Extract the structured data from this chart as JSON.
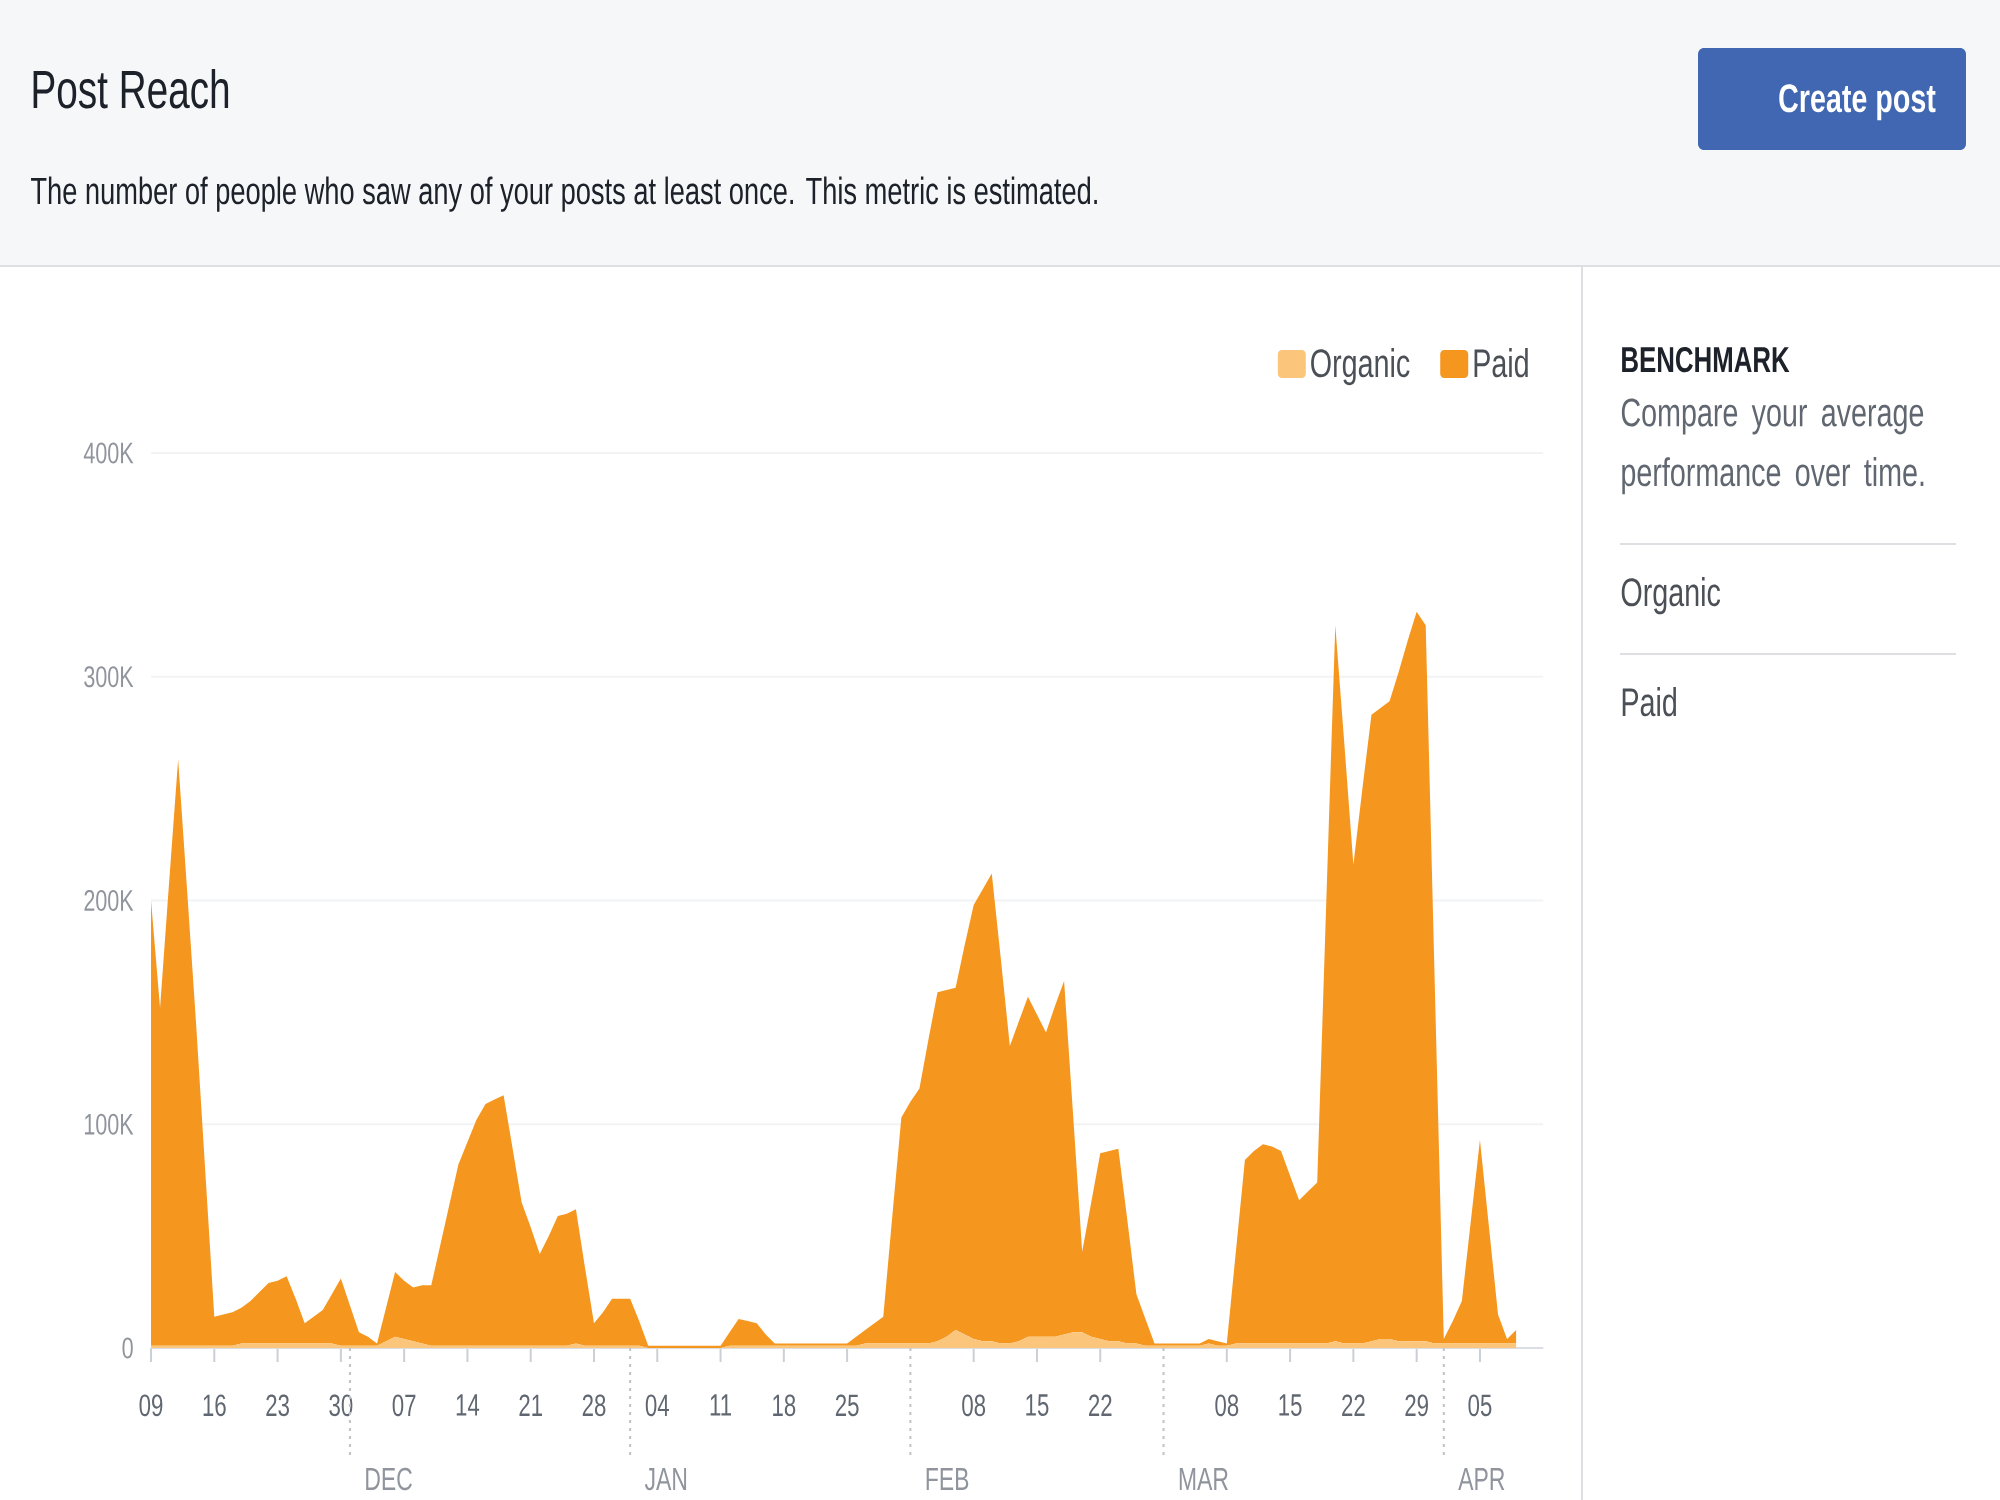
{
  "chart_data": {
    "type": "area",
    "title": "Post Reach",
    "subtitle": "The number of people who saw any of your posts at least once. This metric is estimated.",
    "stacked": true,
    "grid": "y",
    "legend": "top right",
    "categories": [
      "09",
      null,
      null,
      null,
      null,
      null,
      null,
      "16",
      null,
      null,
      null,
      null,
      null,
      null,
      "23",
      null,
      null,
      null,
      null,
      null,
      null,
      "30",
      null,
      null,
      null,
      null,
      null,
      null,
      "07",
      null,
      null,
      null,
      null,
      null,
      null,
      "14",
      null,
      null,
      null,
      null,
      null,
      null,
      "21",
      null,
      null,
      null,
      null,
      null,
      null,
      "28",
      null,
      null,
      null,
      null,
      null,
      null,
      "04",
      null,
      null,
      null,
      null,
      null,
      null,
      "11",
      null,
      null,
      null,
      null,
      null,
      null,
      "18",
      null,
      null,
      null,
      null,
      null,
      null,
      "25",
      null,
      null,
      null,
      null,
      null,
      null,
      null,
      null,
      null,
      null,
      null,
      null,
      null,
      "08",
      null,
      null,
      null,
      null,
      null,
      null,
      "15",
      null,
      null,
      null,
      null,
      null,
      null,
      "22",
      null,
      null,
      null,
      null,
      null,
      null,
      null,
      null,
      null,
      null,
      null,
      null,
      null,
      "08",
      null,
      null,
      null,
      null,
      null,
      null,
      "15",
      null,
      null,
      null,
      null,
      null,
      null,
      "22",
      null,
      null,
      null,
      null,
      null,
      null,
      "29",
      null,
      null,
      null,
      null,
      null,
      null,
      "05",
      null,
      null,
      null,
      null,
      null,
      null,
      null
    ],
    "series": [
      {
        "name": "Organic",
        "color": "#fcc57c",
        "values": [
          1000,
          1000,
          1000,
          1000,
          1000,
          1000,
          1000,
          1000,
          1000,
          1000,
          2000,
          2000,
          2000,
          2000,
          2000,
          2000,
          2000,
          2000,
          2000,
          2000,
          2000,
          1000,
          1000,
          1000,
          1000,
          1000,
          3000,
          5000,
          4000,
          3000,
          2000,
          1000,
          1000,
          1000,
          1000,
          1000,
          1000,
          1000,
          1000,
          1000,
          1000,
          1000,
          1000,
          1000,
          1000,
          1000,
          1000,
          2000,
          1000,
          1000,
          1000,
          1000,
          1000,
          1000,
          1000,
          0,
          0,
          0,
          0,
          0,
          0,
          0,
          0,
          0,
          1000,
          1000,
          1000,
          1000,
          1000,
          1000,
          1000,
          1000,
          1000,
          1000,
          1000,
          1000,
          1000,
          1000,
          1000,
          2000,
          2000,
          2000,
          2000,
          2000,
          2000,
          2000,
          2000,
          3000,
          5000,
          8000,
          6000,
          4000,
          3000,
          3000,
          2000,
          2000,
          3000,
          5000,
          5000,
          5000,
          5000,
          6000,
          7000,
          7000,
          5000,
          4000,
          3000,
          3000,
          2000,
          2000,
          1000,
          1000,
          1000,
          1000,
          1000,
          1000,
          1000,
          2000,
          1000,
          1000,
          2000,
          2000,
          2000,
          2000,
          2000,
          2000,
          2000,
          2000,
          2000,
          2000,
          2000,
          3000,
          2000,
          2000,
          2000,
          3000,
          4000,
          4000,
          3000,
          3000,
          3000,
          3000,
          2000,
          2000,
          2000,
          2000,
          2000,
          2000,
          2000,
          2000,
          2000,
          2000,
          null,
          null,
          null
        ]
      },
      {
        "name": "Paid",
        "color": "#f5961e",
        "values": [
          199000,
          151000,
          207000,
          262000,
          203000,
          143000,
          78000,
          13000,
          14000,
          15000,
          16000,
          19000,
          23000,
          27000,
          28000,
          30000,
          20000,
          9000,
          12000,
          15000,
          22000,
          30000,
          18000,
          6000,
          4000,
          1000,
          15000,
          29000,
          26000,
          24000,
          26000,
          27000,
          45000,
          63000,
          81000,
          91000,
          101000,
          108000,
          110000,
          112000,
          88000,
          64000,
          53000,
          41000,
          49000,
          58000,
          59000,
          60000,
          35000,
          10000,
          15000,
          21000,
          21000,
          21000,
          11000,
          1000,
          1000,
          1000,
          1000,
          1000,
          1000,
          1000,
          1000,
          1000,
          6000,
          12000,
          11000,
          10000,
          5000,
          1000,
          1000,
          1000,
          1000,
          1000,
          1000,
          1000,
          1000,
          1000,
          4000,
          6000,
          9000,
          12000,
          57000,
          101000,
          108000,
          114000,
          136000,
          156000,
          155000,
          153000,
          174000,
          194000,
          202000,
          209000,
          172000,
          133000,
          143000,
          152000,
          144000,
          136000,
          148000,
          158000,
          97000,
          36000,
          60000,
          83000,
          85000,
          86000,
          55000,
          22000,
          12000,
          1000,
          1000,
          1000,
          1000,
          1000,
          1000,
          2000,
          2000,
          1000,
          41000,
          82000,
          86000,
          89000,
          88000,
          86000,
          75000,
          64000,
          68000,
          72000,
          197000,
          320000,
          268000,
          214000,
          248000,
          280000,
          282000,
          285000,
          299000,
          313000,
          326000,
          320000,
          161000,
          2000,
          10000,
          19000,
          55000,
          91000,
          52000,
          13000,
          2000,
          6000,
          null,
          null,
          null
        ]
      }
    ],
    "ylim": [
      0,
      400000
    ],
    "yticks": [
      0,
      {
        "value": 100000,
        "label": "100K"
      },
      {
        "value": 200000,
        "label": "200K"
      },
      {
        "value": 300000,
        "label": "300K"
      },
      {
        "value": 400000,
        "label": "400K"
      }
    ],
    "annotations": [
      "Create post",
      "BENCHMARK",
      "Compare your average performance over time.",
      "Organic",
      "Paid",
      "DEC",
      "JAN",
      "FEB",
      "MAR",
      "APR"
    ]
  }
}
